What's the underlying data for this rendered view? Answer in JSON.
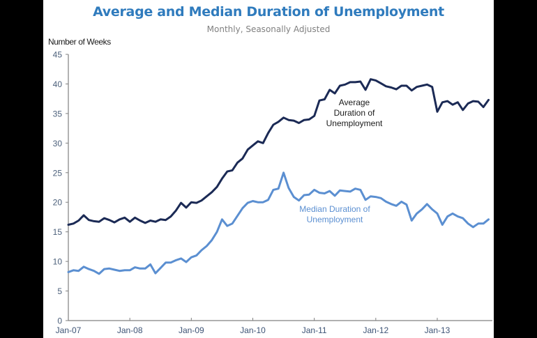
{
  "chart_data": {
    "type": "line",
    "title": "Average and Median Duration of Unemployment",
    "subtitle": "Monthly, Seasonally Adjusted",
    "ylabel": "Number of Weeks",
    "xlabel": "",
    "ylim": [
      0,
      45
    ],
    "yticks": [
      0,
      5,
      10,
      15,
      20,
      25,
      30,
      35,
      40,
      45
    ],
    "ytick_labels": [
      "0",
      "5",
      "10",
      "15",
      "20",
      "25",
      "30",
      "35",
      "40",
      "45"
    ],
    "xtick_labels": [
      "Jan-07",
      "Jan-08",
      "Jan-09",
      "Jan-10",
      "Jan-11",
      "Jan-12",
      "Jan-13"
    ],
    "x_start": "Jan-07",
    "x_frequency": "monthly",
    "grid": false,
    "series": [
      {
        "name": "Average Duration of Unemployment",
        "color": "#1b2a55",
        "values": [
          16.2,
          16.4,
          16.9,
          17.8,
          17.0,
          16.8,
          16.7,
          17.3,
          17.0,
          16.6,
          17.1,
          17.4,
          16.7,
          17.4,
          16.9,
          16.5,
          16.9,
          16.7,
          17.1,
          17.0,
          17.6,
          18.6,
          19.9,
          19.1,
          20.0,
          19.9,
          20.3,
          21.0,
          21.7,
          22.6,
          24.0,
          25.2,
          25.4,
          26.7,
          27.4,
          28.9,
          29.6,
          30.3,
          30.0,
          31.7,
          33.1,
          33.6,
          34.3,
          33.9,
          33.8,
          33.4,
          33.9,
          34.0,
          34.6,
          37.2,
          37.4,
          39.0,
          38.4,
          39.7,
          39.9,
          40.3,
          40.3,
          40.4,
          39.0,
          40.8,
          40.6,
          40.1,
          39.6,
          39.4,
          39.1,
          39.7,
          39.7,
          38.9,
          39.5,
          39.7,
          39.9,
          39.5,
          35.3,
          36.9,
          37.1,
          36.5,
          36.9,
          35.6,
          36.7,
          37.1,
          37.0,
          36.1,
          37.3
        ]
      },
      {
        "name": "Median Duration of Unemployment",
        "color": "#5b8fd1",
        "values": [
          8.2,
          8.5,
          8.4,
          9.1,
          8.7,
          8.4,
          7.9,
          8.7,
          8.8,
          8.6,
          8.4,
          8.5,
          8.5,
          9.0,
          8.8,
          8.8,
          9.5,
          8.0,
          8.9,
          9.8,
          9.8,
          10.2,
          10.5,
          9.9,
          10.7,
          11.0,
          11.9,
          12.6,
          13.6,
          15.0,
          17.1,
          16.0,
          16.4,
          17.7,
          19.0,
          19.9,
          20.2,
          20.0,
          20.0,
          20.4,
          22.1,
          22.3,
          25.0,
          22.4,
          20.9,
          20.3,
          21.2,
          21.3,
          22.1,
          21.6,
          21.5,
          21.9,
          21.1,
          22.0,
          21.9,
          21.8,
          22.3,
          22.1,
          20.4,
          21.0,
          20.9,
          20.7,
          20.1,
          19.7,
          19.4,
          20.1,
          19.6,
          16.9,
          18.1,
          18.8,
          19.7,
          18.8,
          18.1,
          16.2,
          17.6,
          18.1,
          17.6,
          17.3,
          16.4,
          15.8,
          16.4,
          16.4,
          17.1
        ]
      }
    ],
    "annotations": [
      {
        "text_lines": [
          "Average",
          "Duration of",
          "Unemployment"
        ],
        "series": "Average Duration of Unemployment"
      },
      {
        "text_lines": [
          "Median Duration of",
          "Unemployment"
        ],
        "series": "Median Duration of Unemployment"
      }
    ]
  },
  "colors": {
    "title": "#2f7bbd",
    "subtitle": "#808080",
    "axis": "#808080"
  }
}
